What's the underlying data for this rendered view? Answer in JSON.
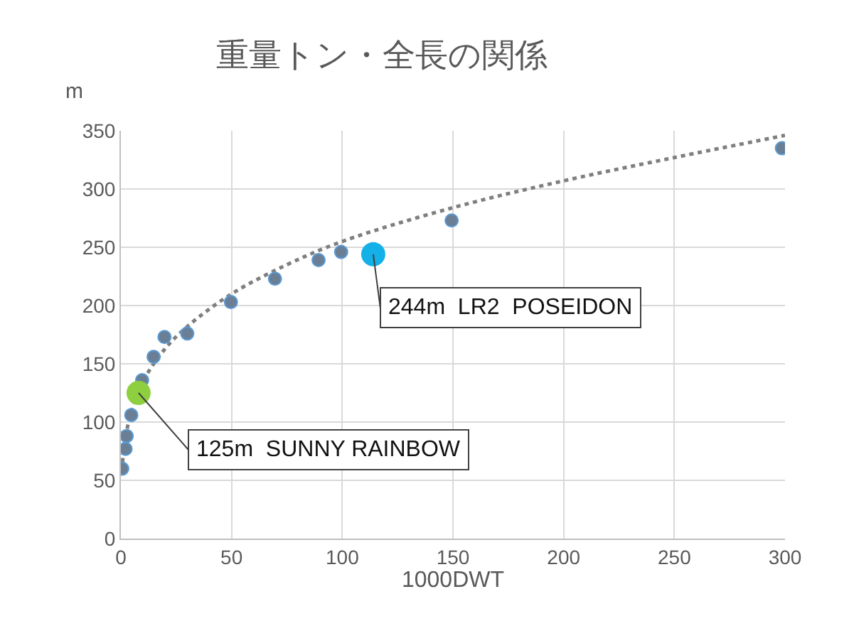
{
  "chart_data": {
    "type": "scatter",
    "title": "重量トン・全長の関係",
    "xlabel": "1000DWT",
    "ylabel": "m",
    "xlim": [
      0,
      300
    ],
    "xticks": [
      0,
      50,
      100,
      150,
      200,
      250,
      300
    ],
    "ylim": [
      0,
      350
    ],
    "yticks": [
      0,
      50,
      100,
      150,
      200,
      250,
      300,
      350
    ],
    "grid": true,
    "marker": "circle",
    "series": [
      {
        "type": "line",
        "color": "#7f7f7f",
        "line_style": "dotted",
        "marker": "none",
        "x": [
          0.5,
          1,
          2,
          5,
          10,
          20,
          30,
          50,
          75,
          100,
          150,
          200,
          250,
          300
        ],
        "values": [
          58,
          71,
          86,
          111,
          135,
          163,
          182,
          210,
          235,
          255,
          284,
          307,
          327,
          346
        ]
      },
      {
        "color": "#6a7f95",
        "x": [
          0.6,
          2.1,
          2.6,
          4.7,
          9.6,
          14.8,
          19.7,
          30,
          49.7,
          69.6,
          89.3,
          99.5,
          149.4,
          298.6
        ],
        "values": [
          60,
          77,
          88,
          106,
          136,
          156,
          173,
          176,
          203,
          223,
          239,
          246,
          273,
          335
        ]
      },
      {
        "color": "#8dcf3f",
        "x": [
          8
        ],
        "values": [
          125
        ]
      },
      {
        "color": "#14b0e8",
        "x": [
          114
        ],
        "values": [
          244
        ]
      }
    ],
    "annotations": [
      {
        "text": "125m  SUNNY RAINBOW",
        "x": 8,
        "y": 125
      },
      {
        "text": "244m  LR2  POSEIDON",
        "x": 114,
        "y": 244
      }
    ]
  }
}
